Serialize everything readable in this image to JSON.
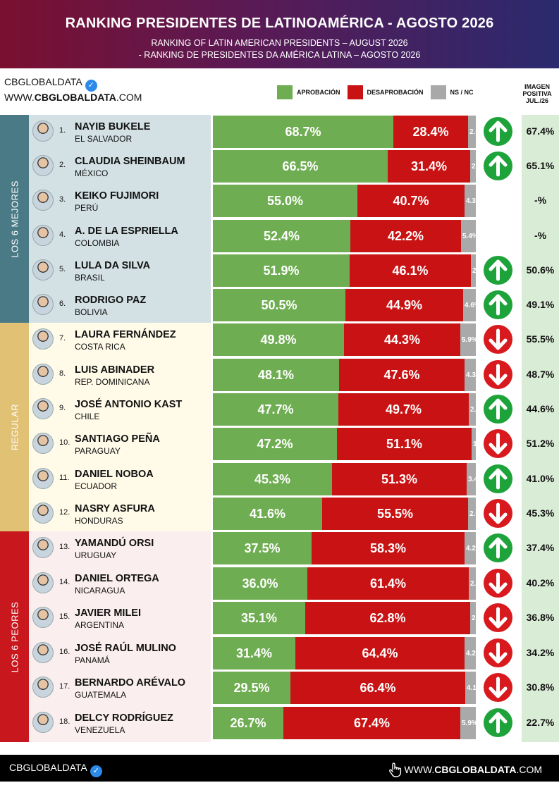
{
  "header": {
    "title": "RANKING PRESIDENTES DE LATINOAMÉRICA - AGOSTO 2026",
    "subtitle_en": "RANKING OF LATIN AMERICAN PRESIDENTS – AUGUST 2026",
    "subtitle_pt": "- RANKING DE PRESIDENTES DA AMÉRICA LATINA – AGOSTO 2026"
  },
  "brand": {
    "name": "CBGLOBALDATA",
    "site_prefix": "WWW.",
    "site_bold": "CBGLOBALDATA",
    "site_suffix": ".COM",
    "verified_icon": "verified-check-icon"
  },
  "legend": {
    "approval": "APROBACIÓN",
    "disapproval": "DESAPROBACIÓN",
    "ns": "NS / NC"
  },
  "column_header": {
    "line1": "IMAGEN",
    "line2": "POSITIVA",
    "line3": "JUL./26"
  },
  "sections": {
    "best": "LOS 6 MEJORES",
    "regular": "REGULAR",
    "worst": "LOS 6 PEORES"
  },
  "colors": {
    "approval": "#6fad52",
    "disapproval": "#c91213",
    "ns": "#a9a9a9",
    "trend_up": "#1da33a",
    "trend_down": "#d81a1f"
  },
  "chart_data": {
    "type": "bar",
    "stacked": true,
    "series_names": [
      "APROBACIÓN",
      "DESAPROBACIÓN",
      "NS / NC"
    ],
    "rows": [
      {
        "rank": "1.",
        "name": "NAYIB BUKELE",
        "country": "EL SALVADOR",
        "approval": 68.7,
        "disapproval": 28.4,
        "ns": 2.9,
        "approval_label": "68.7%",
        "disapproval_label": "28.4%",
        "ns_label": "2.9%",
        "trend": "up",
        "previous": "67.4%"
      },
      {
        "rank": "2.",
        "name": "CLAUDIA SHEINBAUM",
        "country": "MÉXICO",
        "approval": 66.5,
        "disapproval": 31.4,
        "ns": 2.1,
        "approval_label": "66.5%",
        "disapproval_label": "31.4%",
        "ns_label": "2.1%",
        "trend": "up",
        "previous": "65.1%"
      },
      {
        "rank": "3.",
        "name": "KEIKO FUJIMORI",
        "country": "PERÚ",
        "approval": 55.0,
        "disapproval": 40.7,
        "ns": 4.3,
        "approval_label": "55.0%",
        "disapproval_label": "40.7%",
        "ns_label": "4.3%",
        "trend": "none",
        "previous": "-%"
      },
      {
        "rank": "4.",
        "name": "A. DE LA ESPRIELLA",
        "country": "COLOMBIA",
        "approval": 52.4,
        "disapproval": 42.2,
        "ns": 5.4,
        "approval_label": "52.4%",
        "disapproval_label": "42.2%",
        "ns_label": "5.4%",
        "trend": "none",
        "previous": "-%"
      },
      {
        "rank": "5.",
        "name": "LULA DA SILVA",
        "country": "BRASIL",
        "approval": 51.9,
        "disapproval": 46.1,
        "ns": 2.0,
        "approval_label": "51.9%",
        "disapproval_label": "46.1%",
        "ns_label": "2.0%",
        "trend": "up",
        "previous": "50.6%"
      },
      {
        "rank": "6.",
        "name": "RODRIGO PAZ",
        "country": "BOLIVIA",
        "approval": 50.5,
        "disapproval": 44.9,
        "ns": 4.6,
        "approval_label": "50.5%",
        "disapproval_label": "44.9%",
        "ns_label": "4.6%",
        "trend": "up",
        "previous": "49.1%"
      },
      {
        "rank": "7.",
        "name": "LAURA FERNÁNDEZ",
        "country": "COSTA RICA",
        "approval": 49.8,
        "disapproval": 44.3,
        "ns": 5.9,
        "approval_label": "49.8%",
        "disapproval_label": "44.3%",
        "ns_label": "5.9%",
        "trend": "down",
        "previous": "55.5%"
      },
      {
        "rank": "8.",
        "name": "LUIS ABINADER",
        "country": "REP. DOMINICANA",
        "approval": 48.1,
        "disapproval": 47.6,
        "ns": 4.3,
        "approval_label": "48.1%",
        "disapproval_label": "47.6%",
        "ns_label": "4.3%",
        "trend": "down",
        "previous": "48.7%"
      },
      {
        "rank": "9.",
        "name": "JOSÉ ANTONIO KAST",
        "country": "CHILE",
        "approval": 47.7,
        "disapproval": 49.7,
        "ns": 2.6,
        "approval_label": "47.7%",
        "disapproval_label": "49.7%",
        "ns_label": "2.6%",
        "trend": "up",
        "previous": "44.6%"
      },
      {
        "rank": "10.",
        "name": "SANTIAGO PEÑA",
        "country": "PARAGUAY",
        "approval": 47.2,
        "disapproval": 51.1,
        "ns": 1.7,
        "approval_label": "47.2%",
        "disapproval_label": "51.1%",
        "ns_label": "1.7%",
        "trend": "down",
        "previous": "51.2%"
      },
      {
        "rank": "11.",
        "name": "DANIEL NOBOA",
        "country": "ECUADOR",
        "approval": 45.3,
        "disapproval": 51.3,
        "ns": 3.4,
        "approval_label": "45.3%",
        "disapproval_label": "51.3%",
        "ns_label": "3.4%",
        "trend": "up",
        "previous": "41.0%"
      },
      {
        "rank": "12.",
        "name": "NASRY ASFURA",
        "country": "HONDURAS",
        "approval": 41.6,
        "disapproval": 55.5,
        "ns": 2.9,
        "approval_label": "41.6%",
        "disapproval_label": "55.5%",
        "ns_label": "2.9%",
        "trend": "down",
        "previous": "45.3%"
      },
      {
        "rank": "13.",
        "name": "YAMANDÚ ORSI",
        "country": "URUGUAY",
        "approval": 37.5,
        "disapproval": 58.3,
        "ns": 4.2,
        "approval_label": "37.5%",
        "disapproval_label": "58.3%",
        "ns_label": "4.2%",
        "trend": "up",
        "previous": "37.4%"
      },
      {
        "rank": "14.",
        "name": "DANIEL ORTEGA",
        "country": "NICARAGUA",
        "approval": 36.0,
        "disapproval": 61.4,
        "ns": 2.6,
        "approval_label": "36.0%",
        "disapproval_label": "61.4%",
        "ns_label": "2.6%",
        "trend": "down",
        "previous": "40.2%"
      },
      {
        "rank": "15.",
        "name": "JAVIER MILEI",
        "country": "ARGENTINA",
        "approval": 35.1,
        "disapproval": 62.8,
        "ns": 2.1,
        "approval_label": "35.1%",
        "disapproval_label": "62.8%",
        "ns_label": "2.1%",
        "trend": "down",
        "previous": "36.8%"
      },
      {
        "rank": "16.",
        "name": "JOSÉ RAÚL MULINO",
        "country": "PANAMÁ",
        "approval": 31.4,
        "disapproval": 64.4,
        "ns": 4.2,
        "approval_label": "31.4%",
        "disapproval_label": "64.4%",
        "ns_label": "4.2%",
        "trend": "down",
        "previous": "34.2%"
      },
      {
        "rank": "17.",
        "name": "BERNARDO ARÉVALO",
        "country": "GUATEMALA",
        "approval": 29.5,
        "disapproval": 66.4,
        "ns": 4.1,
        "approval_label": "29.5%",
        "disapproval_label": "66.4%",
        "ns_label": "4.1%",
        "trend": "down",
        "previous": "30.8%"
      },
      {
        "rank": "18.",
        "name": "DELCY RODRÍGUEZ",
        "country": "VENEZUELA",
        "approval": 26.7,
        "disapproval": 67.4,
        "ns": 5.9,
        "approval_label": "26.7%",
        "disapproval_label": "67.4%",
        "ns_label": "5.9%",
        "trend": "up",
        "previous": "22.7%"
      }
    ]
  },
  "footer": {
    "brand": "CBGLOBALDATA",
    "site_prefix": "WWW.",
    "site_bold": "CBGLOBALDATA",
    "site_suffix": ".COM",
    "hand_icon": "pointer-hand-icon"
  }
}
